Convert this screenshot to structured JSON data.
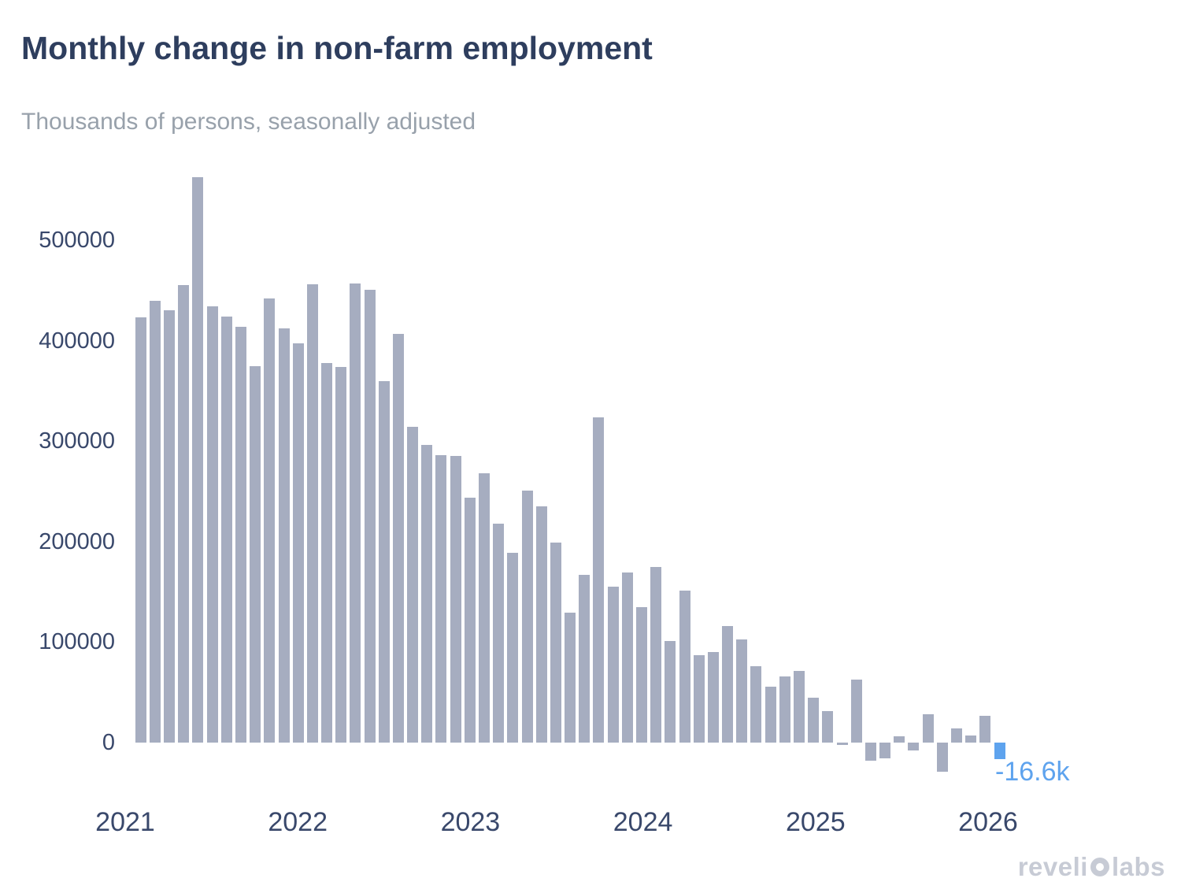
{
  "header": {
    "title": "Monthly change in non-farm employment",
    "subtitle": "Thousands of persons, seasonally adjusted"
  },
  "watermark": {
    "part1": "reveli",
    "part2": "labs",
    "logo_icon": "revelio-logo-o-icon"
  },
  "colors": {
    "bar_gray": "#a6adc0",
    "bar_highlight_blue": "#5ea3ee",
    "title_navy": "#2e3e5e",
    "subtitle_gray": "#98a1ab",
    "axis_navy": "#39486b",
    "watermark_gray": "#c7cbd5"
  },
  "chart_data": {
    "type": "bar",
    "title": "Monthly change in non-farm employment",
    "subtitle": "Thousands of persons, seasonally adjusted",
    "xlabel": "",
    "ylabel": "Thousands of persons, seasonally adjusted",
    "grid": false,
    "legend": "none",
    "ylim": [
      -60000,
      580000
    ],
    "y_ticks": [
      "0",
      "100000",
      "200000",
      "300000",
      "400000",
      "500000"
    ],
    "x_ticks": [
      "2021",
      "2022",
      "2023",
      "2024",
      "2025",
      "2026"
    ],
    "annotation": {
      "text": "-16.6k",
      "applies_to": "2026-02"
    },
    "months": [
      "2021-02",
      "2021-03",
      "2021-04",
      "2021-05",
      "2021-06",
      "2021-07",
      "2021-08",
      "2021-09",
      "2021-10",
      "2021-11",
      "2021-12",
      "2022-01",
      "2022-02",
      "2022-03",
      "2022-04",
      "2022-05",
      "2022-06",
      "2022-07",
      "2022-08",
      "2022-09",
      "2022-10",
      "2022-11",
      "2022-12",
      "2023-01",
      "2023-02",
      "2023-03",
      "2023-04",
      "2023-05",
      "2023-06",
      "2023-07",
      "2023-08",
      "2023-09",
      "2023-10",
      "2023-11",
      "2023-12",
      "2024-01",
      "2024-02",
      "2024-03",
      "2024-04",
      "2024-05",
      "2024-06",
      "2024-07",
      "2024-08",
      "2024-09",
      "2024-10",
      "2024-11",
      "2024-12",
      "2025-01",
      "2025-02",
      "2025-03",
      "2025-04",
      "2025-05",
      "2025-06",
      "2025-07",
      "2025-08",
      "2025-09",
      "2025-10",
      "2025-11",
      "2025-12",
      "2026-01",
      "2026-02"
    ],
    "values": [
      423000,
      440000,
      430000,
      455000,
      563000,
      434000,
      424000,
      414000,
      375000,
      442000,
      412000,
      397000,
      456000,
      378000,
      374000,
      457000,
      451000,
      360000,
      407000,
      314000,
      296000,
      286000,
      285000,
      244000,
      268000,
      218000,
      189000,
      251000,
      235000,
      199000,
      129000,
      167000,
      324000,
      155000,
      169000,
      135000,
      175000,
      101000,
      151000,
      87000,
      90000,
      116000,
      103000,
      76000,
      56000,
      66000,
      71000,
      45000,
      31000,
      -2000,
      63000,
      -18000,
      -16000,
      6000,
      -8000,
      28000,
      -29000,
      14000,
      7000,
      27000,
      -16600
    ],
    "highlight_last_bar": true
  }
}
